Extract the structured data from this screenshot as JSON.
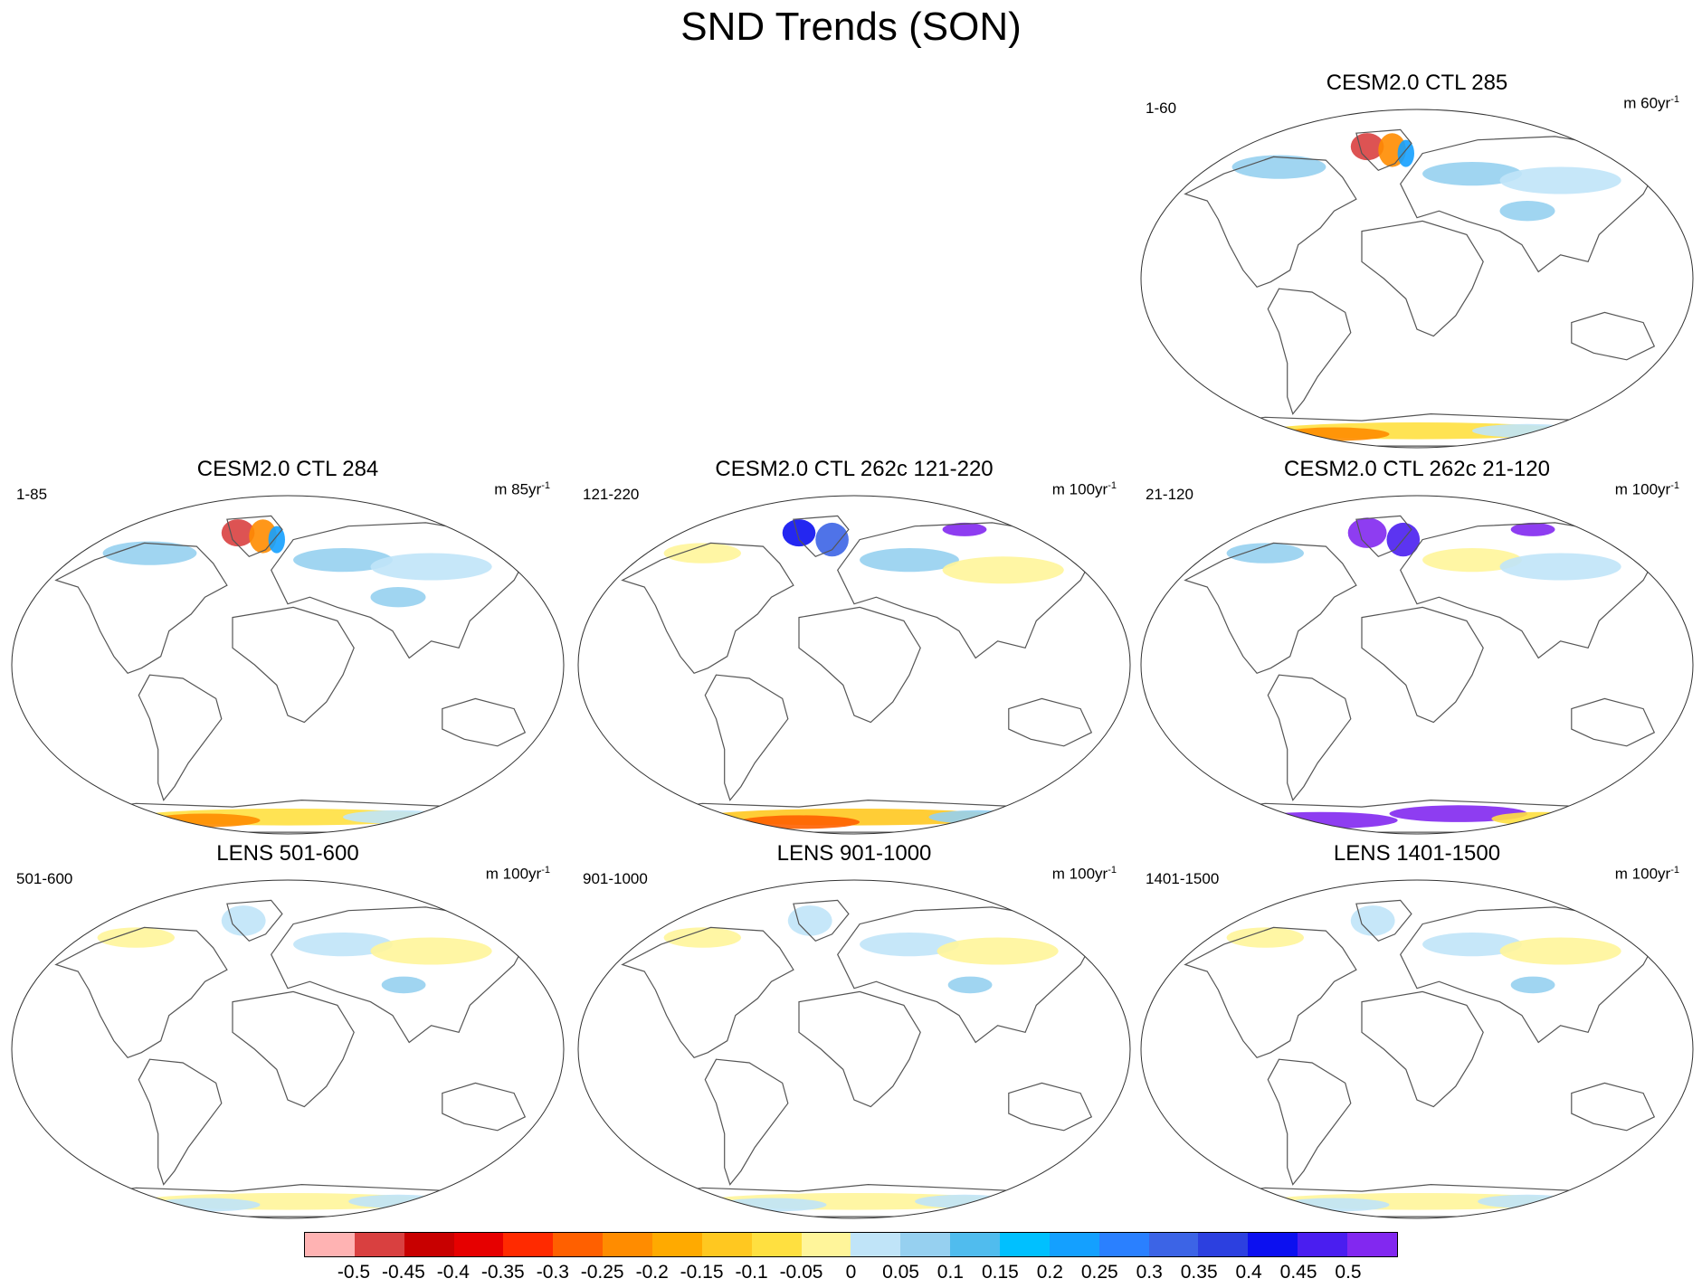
{
  "title": "SND Trends (SON)",
  "panels": [
    {
      "title": "CESM2.0 CTL 285",
      "left": "1-60",
      "units": "m 60yr",
      "units_sup": "-1",
      "style": "a"
    },
    {
      "title": "CESM2.0 CTL 284",
      "left": "1-85",
      "units": "m 85yr",
      "units_sup": "-1",
      "style": "a"
    },
    {
      "title": "CESM2.0 CTL 262c 121-220",
      "left": "121-220",
      "units": "m 100yr",
      "units_sup": "-1",
      "style": "b"
    },
    {
      "title": "CESM2.0 CTL 262c 21-120",
      "left": "21-120",
      "units": "m 100yr",
      "units_sup": "-1",
      "style": "c"
    },
    {
      "title": "LENS 501-600",
      "left": "501-600",
      "units": "m 100yr",
      "units_sup": "-1",
      "style": "d"
    },
    {
      "title": "LENS 901-1000",
      "left": "901-1000",
      "units": "m 100yr",
      "units_sup": "-1",
      "style": "d"
    },
    {
      "title": "LENS 1401-1500",
      "left": "1401-1500",
      "units": "m 100yr",
      "units_sup": "-1",
      "style": "d"
    }
  ],
  "colorbar": {
    "colors": [
      "#ffb3b3",
      "#d94040",
      "#c80000",
      "#e60000",
      "#ff2a00",
      "#ff6000",
      "#ff8c00",
      "#ffaa00",
      "#ffc820",
      "#ffe040",
      "#fff59a",
      "#c0e4f8",
      "#96d0f0",
      "#50bcee",
      "#00c0ff",
      "#14a0ff",
      "#2a80ff",
      "#3c64e6",
      "#2c40e0",
      "#0c10f0",
      "#4a1ef0",
      "#8228f0"
    ],
    "labels": [
      "-0.5",
      "-0.45",
      "-0.4",
      "-0.35",
      "-0.3",
      "-0.25",
      "-0.2",
      "-0.15",
      "-0.1",
      "-0.05",
      "0",
      "0.05",
      "0.1",
      "0.15",
      "0.2",
      "0.25",
      "0.3",
      "0.35",
      "0.4",
      "0.45",
      "0.5"
    ]
  }
}
